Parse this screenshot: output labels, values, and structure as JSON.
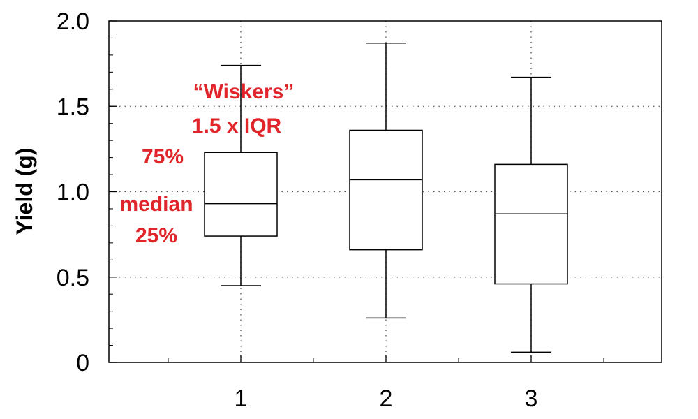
{
  "chart_data": {
    "type": "box",
    "title": "",
    "xlabel": "",
    "ylabel": "Yield (g)",
    "ylim": [
      0,
      2.0
    ],
    "yticks": [
      "0",
      "0.5",
      "1.0",
      "1.5",
      "2.0"
    ],
    "categories": [
      "1",
      "2",
      "3"
    ],
    "grid": true,
    "boxes": [
      {
        "category": "1",
        "whisker_low": 0.45,
        "q1": 0.74,
        "median": 0.93,
        "q3": 1.23,
        "whisker_high": 1.74
      },
      {
        "category": "2",
        "whisker_low": 0.26,
        "q1": 0.66,
        "median": 1.07,
        "q3": 1.36,
        "whisker_high": 1.87
      },
      {
        "category": "3",
        "whisker_low": 0.06,
        "q1": 0.46,
        "median": 0.87,
        "q3": 1.16,
        "whisker_high": 1.67
      }
    ],
    "annotations": {
      "color": "#e0262b",
      "wiskers": "“Wiskers”",
      "iqr": "1.5 x IQR",
      "q3": "75%",
      "median": "median",
      "q1": "25%"
    }
  }
}
